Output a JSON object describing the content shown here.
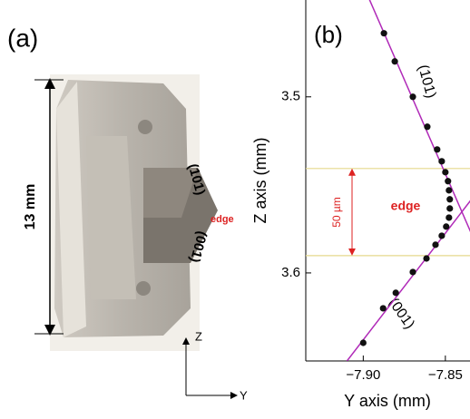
{
  "panel_a": {
    "label": "(a)",
    "scale_label": "13 mm",
    "face_labels": [
      "(101)",
      "(001)"
    ],
    "edge_label": "edge",
    "axes": [
      "Z",
      "Y"
    ]
  },
  "chart_data": {
    "type": "scatter",
    "label": "(b)",
    "x_label": "Y axis (mm)",
    "y_label": "Z axis (mm)",
    "x": [
      -7.8874,
      -7.8808,
      -7.8698,
      -7.861,
      -7.855,
      -7.8522,
      -7.85,
      -7.8484,
      -7.8478,
      -7.8473,
      -7.8473,
      -7.8478,
      -7.8495,
      -7.8522,
      -7.856,
      -7.8615,
      -7.8698,
      -7.8802,
      -7.8879,
      -7.9
    ],
    "y": [
      3.4639,
      3.4799,
      3.5,
      3.517,
      3.5299,
      3.5366,
      3.5428,
      3.5479,
      3.5531,
      3.5582,
      3.5634,
      3.5686,
      3.5737,
      3.5789,
      3.584,
      3.5918,
      3.5995,
      3.6113,
      3.6201,
      3.6397
    ],
    "color": "#111111",
    "xlim": [
      -7.935,
      -7.835
    ],
    "ylim": [
      3.65,
      3.445
    ],
    "xticks": [
      {
        "value": -7.9,
        "label": "−7.90"
      },
      {
        "value": -7.85,
        "label": "−7.85"
      }
    ],
    "yticks": [
      3.5,
      3.6
    ],
    "fit_lines": [
      {
        "color": "#b02ab8",
        "x": [
          -7.8962,
          -7.8341
        ],
        "y": [
          3.4448,
          3.5778
        ]
      },
      {
        "color": "#b02ab8",
        "x": [
          -7.9099,
          -7.8341
        ],
        "y": [
          3.65,
          3.5582
        ]
      }
    ],
    "edge_band": [
      3.5407,
      3.5902
    ],
    "band_color": "#e6d98c",
    "face_labels": [
      "(101)",
      "(001)"
    ],
    "edge_label": "edge",
    "width_label": "50 µm"
  }
}
